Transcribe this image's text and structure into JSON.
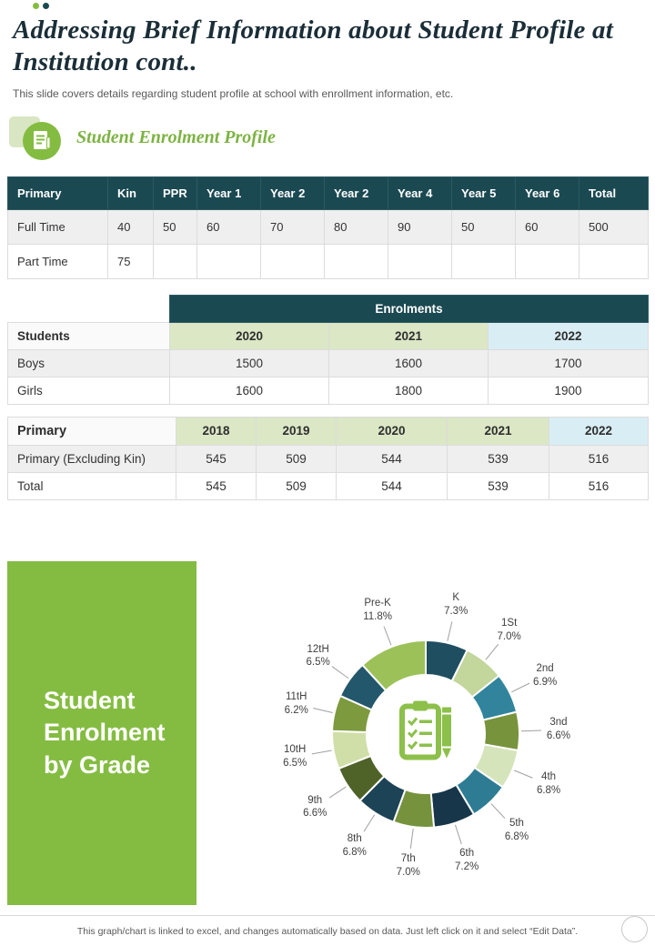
{
  "slide": {
    "title": "Addressing Brief Information about Student Profile at Institution cont..",
    "subtitle": "This slide covers details regarding student profile at school with enrollment information, etc.",
    "section_heading": "Student Enrolment Profile",
    "footer_note": "This graph/chart is linked to excel, and changes automatically based on data. Just left click on it and select “Edit Data”."
  },
  "colors": {
    "accent_green": "#84bc41",
    "header_teal": "#1b4952",
    "light_green_cell": "#dbe7c5",
    "light_blue_cell": "#d9edf4"
  },
  "table_primary": {
    "headers": [
      "Primary",
      "Kin",
      "PPR",
      "Year 1",
      "Year 2",
      "Year 2",
      "Year 4",
      "Year 5",
      "Year 6",
      "Total"
    ],
    "rows": [
      {
        "label": "Full Time",
        "values": [
          "40",
          "50",
          "60",
          "70",
          "80",
          "90",
          "50",
          "60",
          "500"
        ]
      },
      {
        "label": "Part Time",
        "values": [
          "75",
          "",
          "",
          "",
          "",
          "",
          "",
          "",
          ""
        ]
      }
    ]
  },
  "table_enrolments": {
    "span_header": "Enrolments",
    "col_header": "Students",
    "years": [
      "2020",
      "2021",
      "2022"
    ],
    "rows": [
      {
        "label": "Boys",
        "values": [
          "1500",
          "1600",
          "1700"
        ]
      },
      {
        "label": "Girls",
        "values": [
          "1600",
          "1800",
          "1900"
        ]
      }
    ]
  },
  "table_primary_years": {
    "col_header": "Primary",
    "years": [
      "2018",
      "2019",
      "2020",
      "2021",
      "2022"
    ],
    "rows": [
      {
        "label": "Primary (Excluding Kin)",
        "values": [
          "545",
          "509",
          "544",
          "539",
          "516"
        ]
      },
      {
        "label": "Total",
        "values": [
          "545",
          "509",
          "544",
          "539",
          "516"
        ]
      }
    ]
  },
  "chart_panel": {
    "title": "Student Enrolment by Grade"
  },
  "chart_data": {
    "type": "pie",
    "donut": true,
    "title": "Student Enrolment by Grade",
    "start_angle_deg": 0,
    "direction": "clockwise",
    "center_icon": "clipboard-pencil-icon",
    "slices": [
      {
        "label": "K",
        "value": 7.3,
        "color": "#1f4e61"
      },
      {
        "label": "1St",
        "value": 7.0,
        "color": "#c3d69b"
      },
      {
        "label": "2nd",
        "value": 6.9,
        "color": "#31849b"
      },
      {
        "label": "3nd",
        "value": 6.6,
        "color": "#77933c"
      },
      {
        "label": "4th",
        "value": 6.8,
        "color": "#d6e4bc"
      },
      {
        "label": "5th",
        "value": 6.8,
        "color": "#2e7c93"
      },
      {
        "label": "6th",
        "value": 7.2,
        "color": "#17364a"
      },
      {
        "label": "7th",
        "value": 7.0,
        "color": "#76923d"
      },
      {
        "label": "8th",
        "value": 6.8,
        "color": "#1d4356"
      },
      {
        "label": "9th",
        "value": 6.6,
        "color": "#4f6228"
      },
      {
        "label": "10tH",
        "value": 6.5,
        "color": "#cfdfa7"
      },
      {
        "label": "11tH",
        "value": 6.2,
        "color": "#7d9a3e"
      },
      {
        "label": "12tH",
        "value": 6.5,
        "color": "#23576b"
      },
      {
        "label": "Pre-K",
        "value": 11.8,
        "color": "#9cc159"
      }
    ]
  }
}
